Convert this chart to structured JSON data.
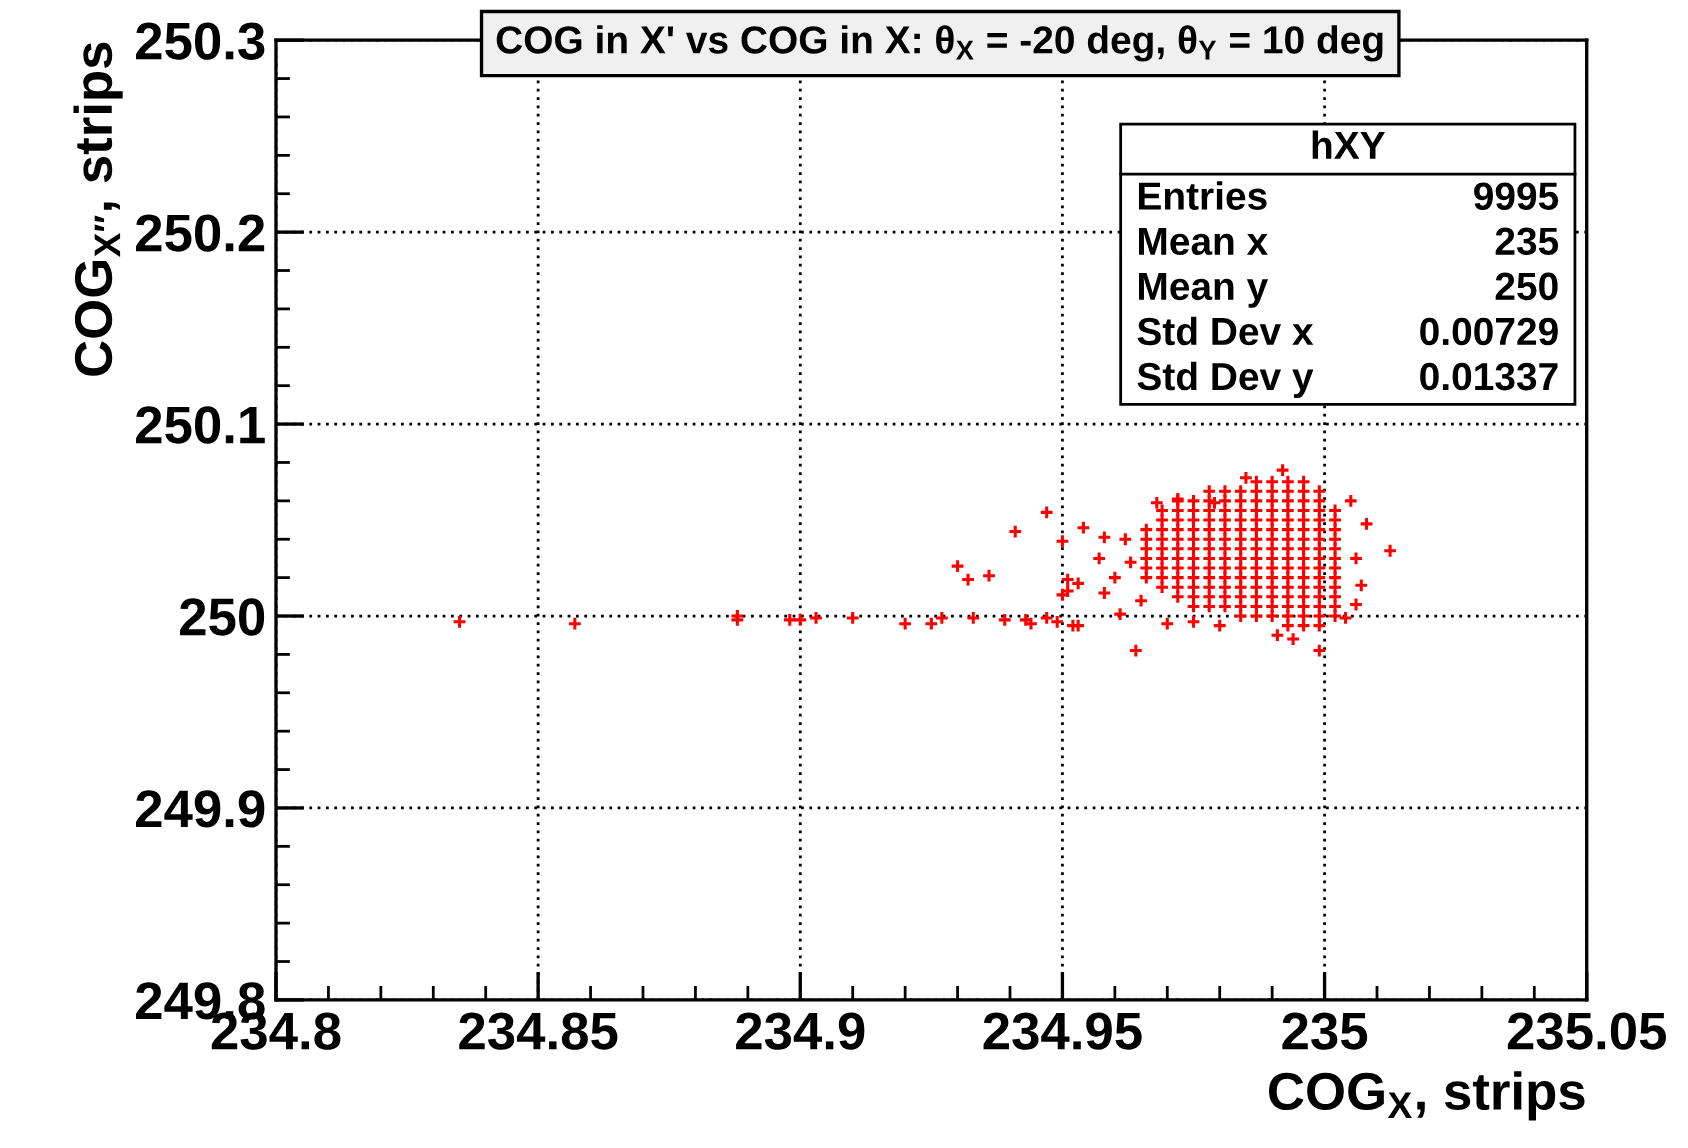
{
  "chart_data": {
    "type": "scatter",
    "title": "COG in X' vs COG in X: θ$_{X}$ = -20 deg, θ$_{Y}$ = 10 deg",
    "xlabel": "COG$_{X}$, strips",
    "ylabel": "COG$_{X″}$, strips",
    "annotations": [
      "hXY",
      "Entries",
      "9995",
      "Mean x",
      "235",
      "Mean y",
      "250",
      "Std Dev x",
      "0.00729",
      "Std Dev y",
      "0.01337"
    ],
    "xlim": [
      234.8,
      235.05
    ],
    "ylim": [
      249.8,
      250.3
    ],
    "xticks": [
      234.8,
      234.85,
      234.9,
      234.95,
      235,
      235.05
    ],
    "yticks": [
      249.8,
      249.9,
      250,
      250.1,
      250.2,
      250.3
    ],
    "grid": true,
    "legend": false,
    "marker": "cross",
    "series": [
      {
        "color": "#ff0000",
        "x": [
          234.966,
          234.966,
          234.966,
          234.966,
          234.966,
          234.966,
          234.969,
          234.969,
          234.969,
          234.969,
          234.969,
          234.969,
          234.969,
          234.969,
          234.969,
          234.972,
          234.972,
          234.972,
          234.972,
          234.972,
          234.972,
          234.972,
          234.972,
          234.972,
          234.972,
          234.972,
          234.975,
          234.975,
          234.975,
          234.975,
          234.975,
          234.975,
          234.975,
          234.975,
          234.975,
          234.975,
          234.975,
          234.975,
          234.978,
          234.978,
          234.978,
          234.978,
          234.978,
          234.978,
          234.978,
          234.978,
          234.978,
          234.978,
          234.978,
          234.978,
          234.978,
          234.981,
          234.981,
          234.981,
          234.981,
          234.981,
          234.981,
          234.981,
          234.981,
          234.981,
          234.981,
          234.981,
          234.981,
          234.981,
          234.984,
          234.984,
          234.984,
          234.984,
          234.984,
          234.984,
          234.984,
          234.984,
          234.984,
          234.984,
          234.984,
          234.984,
          234.984,
          234.984,
          234.987,
          234.987,
          234.987,
          234.987,
          234.987,
          234.987,
          234.987,
          234.987,
          234.987,
          234.987,
          234.987,
          234.987,
          234.987,
          234.987,
          234.987,
          234.99,
          234.99,
          234.99,
          234.99,
          234.99,
          234.99,
          234.99,
          234.99,
          234.99,
          234.99,
          234.99,
          234.99,
          234.99,
          234.99,
          234.99,
          234.993,
          234.993,
          234.993,
          234.993,
          234.993,
          234.993,
          234.993,
          234.993,
          234.993,
          234.993,
          234.993,
          234.993,
          234.993,
          234.993,
          234.993,
          234.993,
          234.996,
          234.996,
          234.996,
          234.996,
          234.996,
          234.996,
          234.996,
          234.996,
          234.996,
          234.996,
          234.996,
          234.996,
          234.996,
          234.996,
          234.996,
          234.996,
          234.999,
          234.999,
          234.999,
          234.999,
          234.999,
          234.999,
          234.999,
          234.999,
          234.999,
          234.999,
          234.999,
          234.999,
          234.999,
          234.999,
          234.999,
          235.002,
          235.002,
          235.002,
          235.002,
          235.002,
          235.002,
          235.002,
          235.002,
          235.002,
          235.002,
          235.002,
          235.002,
          234.835,
          234.857,
          234.888,
          234.888,
          234.898,
          234.9,
          234.903,
          234.91,
          234.92,
          234.925,
          234.927,
          234.93,
          234.932,
          234.936,
          234.933,
          234.939,
          234.943,
          234.944,
          234.947,
          234.949,
          234.951,
          234.951,
          234.953,
          234.947,
          234.941,
          234.95,
          234.954,
          234.958,
          234.958,
          234.962,
          234.964,
          234.968,
          234.972,
          234.979,
          234.992,
          234.999,
          235.008,
          235.0125,
          235.006,
          235.004,
          234.994,
          234.991,
          234.961,
          234.952,
          234.953,
          234.95,
          234.96,
          234.963,
          234.957,
          234.965,
          234.97,
          234.975,
          234.98,
          235.006,
          235.007,
          235.005,
          234.985
        ],
        "values": [
          250.02,
          250.025,
          250.03,
          250.035,
          250.04,
          250.045,
          250.015,
          250.02,
          250.025,
          250.03,
          250.035,
          250.04,
          250.045,
          250.05,
          250.055,
          250.01,
          250.015,
          250.02,
          250.025,
          250.03,
          250.035,
          250.04,
          250.045,
          250.05,
          250.055,
          250.06,
          250.005,
          250.01,
          250.015,
          250.02,
          250.025,
          250.03,
          250.035,
          250.04,
          250.045,
          250.05,
          250.055,
          250.06,
          250.005,
          250.01,
          250.015,
          250.02,
          250.025,
          250.03,
          250.035,
          250.04,
          250.045,
          250.05,
          250.055,
          250.06,
          250.065,
          250.005,
          250.01,
          250.015,
          250.02,
          250.025,
          250.03,
          250.035,
          250.04,
          250.045,
          250.05,
          250.055,
          250.06,
          250.065,
          250,
          250.005,
          250.01,
          250.015,
          250.02,
          250.025,
          250.03,
          250.035,
          250.04,
          250.045,
          250.05,
          250.055,
          250.06,
          250.065,
          250,
          250.005,
          250.01,
          250.015,
          250.02,
          250.025,
          250.03,
          250.035,
          250.04,
          250.045,
          250.05,
          250.055,
          250.06,
          250.065,
          250.07,
          250,
          250.005,
          250.01,
          250.015,
          250.02,
          250.025,
          250.03,
          250.035,
          250.04,
          250.045,
          250.05,
          250.055,
          250.06,
          250.065,
          250.07,
          249.995,
          250,
          250.005,
          250.01,
          250.015,
          250.02,
          250.025,
          250.03,
          250.035,
          250.04,
          250.045,
          250.05,
          250.055,
          250.06,
          250.065,
          250.07,
          249.995,
          250,
          250.005,
          250.01,
          250.015,
          250.02,
          250.025,
          250.03,
          250.035,
          250.04,
          250.045,
          250.05,
          250.055,
          250.06,
          250.065,
          250.07,
          249.995,
          250,
          250.005,
          250.01,
          250.015,
          250.02,
          250.025,
          250.03,
          250.035,
          250.04,
          250.045,
          250.05,
          250.055,
          250.06,
          250.065,
          250,
          250.005,
          250.01,
          250.015,
          250.02,
          250.025,
          250.03,
          250.035,
          250.04,
          250.045,
          250.05,
          250.055,
          249.997,
          249.996,
          249.998,
          250,
          249.998,
          249.998,
          249.999,
          249.999,
          249.996,
          249.996,
          249.999,
          250.026,
          250.019,
          250.021,
          249.999,
          249.998,
          249.998,
          249.996,
          249.999,
          249.997,
          250.013,
          250.019,
          249.995,
          250.054,
          250.044,
          250.039,
          250.046,
          250.041,
          250.012,
          250.04,
          249.982,
          250.059,
          250.061,
          250.059,
          250.076,
          249.982,
          250.048,
          250.034,
          250.006,
          249.999,
          249.988,
          249.99,
          250.001,
          249.995,
          250.017,
          250.011,
          250.02,
          250.028,
          250.03,
          250.008,
          249.996,
          249.997,
          249.995,
          250.03,
          250.016,
          250.06,
          250.072
        ]
      }
    ]
  }
}
